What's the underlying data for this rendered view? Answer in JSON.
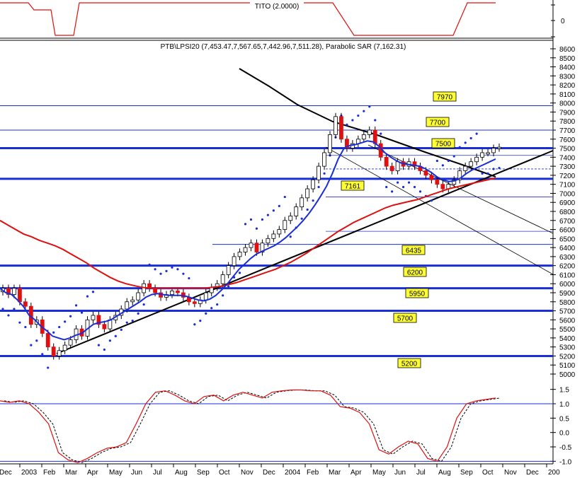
{
  "chart_data": {
    "type": "candlestick",
    "title": "PTB\\LPSI20 (7,453.47,7,567.65,7,442.96,7,511.28), Parabolic SAR (7,162.31)",
    "indicator_top": {
      "label": "TITO (2.0000)",
      "tick_label": "0"
    },
    "y_ticks": [
      8600,
      8500,
      8400,
      8300,
      8200,
      8100,
      8000,
      7900,
      7800,
      7700,
      7600,
      7500,
      7400,
      7300,
      7200,
      7100,
      7000,
      6900,
      6800,
      6700,
      6600,
      6500,
      6400,
      6300,
      6200,
      6100,
      6000,
      5900,
      5800,
      5700,
      5600,
      5500,
      5400,
      5300,
      5200,
      5100,
      5000
    ],
    "ylim": [
      4900,
      8700
    ],
    "osc_ticks": [
      "1.5",
      "1.0",
      "0.5",
      "0.0",
      "-0.5",
      "-1.0"
    ],
    "osc_range": [
      -1.25,
      1.75
    ],
    "x_labels": [
      "Dec",
      "2003",
      "Feb",
      "Mar",
      "Apr",
      "May",
      "Jun",
      "Jul",
      "Aug",
      "Sep",
      "Oct",
      "Nov",
      "Dec",
      "2004",
      "Feb",
      "Mar",
      "Apr",
      "May",
      "Jun",
      "Jul",
      "Aug",
      "Sep",
      "Oct",
      "Nov",
      "Dec",
      "200"
    ],
    "levels": [
      {
        "value": 7970,
        "label": "7970",
        "thick": false
      },
      {
        "value": 7700,
        "label": "7700",
        "thick": false
      },
      {
        "value": 7500,
        "label": "7500",
        "thick": true
      },
      {
        "value": 7161,
        "label": "7161",
        "thick": true
      },
      {
        "value": 6435,
        "label": "6435",
        "thick": false
      },
      {
        "value": 6200,
        "label": "6200",
        "thick": true
      },
      {
        "value": 5950,
        "label": "5950",
        "thick": true
      },
      {
        "value": 5700,
        "label": "5700",
        "thick": true
      },
      {
        "value": 5200,
        "label": "5200",
        "thick": true
      }
    ],
    "extra_lines": [
      6960,
      6580,
      7270,
      7420
    ],
    "price": [
      5950,
      5880,
      5950,
      5800,
      5750,
      5550,
      5600,
      5450,
      5300,
      5200,
      5260,
      5320,
      5380,
      5500,
      5420,
      5600,
      5650,
      5550,
      5500,
      5600,
      5650,
      5720,
      5800,
      5820,
      5900,
      6000,
      5950,
      5900,
      5850,
      5880,
      5920,
      5900,
      5850,
      5800,
      5780,
      5820,
      5900,
      5960,
      6000,
      6100,
      6200,
      6300,
      6350,
      6400,
      6450,
      6350,
      6450,
      6500,
      6550,
      6600,
      6700,
      6750,
      6850,
      6950,
      7050,
      7150,
      7300,
      7450,
      7650,
      7850,
      7600,
      7500,
      7550,
      7600,
      7650,
      7700,
      7550,
      7400,
      7300,
      7250,
      7350,
      7300,
      7350,
      7300,
      7250,
      7200,
      7150,
      7100,
      7050,
      7100,
      7150,
      7250,
      7300,
      7350,
      7400,
      7450,
      7450,
      7500,
      7511
    ],
    "sma_short": [
      5950,
      5900,
      5880,
      5820,
      5750,
      5650,
      5600,
      5530,
      5480,
      5420,
      5400,
      5380,
      5400,
      5430,
      5450,
      5500,
      5550,
      5570,
      5580,
      5600,
      5640,
      5680,
      5720,
      5760,
      5800,
      5850,
      5880,
      5890,
      5880,
      5870,
      5870,
      5870,
      5860,
      5840,
      5820,
      5810,
      5830,
      5870,
      5930,
      6000,
      6080,
      6160,
      6220,
      6280,
      6330,
      6360,
      6390,
      6420,
      6460,
      6510,
      6570,
      6630,
      6700,
      6780,
      6870,
      6970,
      7080,
      7220,
      7380,
      7500,
      7530,
      7540,
      7560,
      7580,
      7570,
      7520,
      7450,
      7400,
      7360,
      7330,
      7320,
      7310,
      7300,
      7270,
      7230,
      7180,
      7150,
      7130,
      7140,
      7170,
      7220,
      7260,
      7290,
      7320,
      7350,
      7380
    ],
    "sma_long": [
      6700,
      6650,
      6600,
      6550,
      6520,
      6480,
      6450,
      6420,
      6380,
      6330,
      6280,
      6230,
      6170,
      6120,
      6070,
      6030,
      6000,
      5980,
      5960,
      5950,
      5950,
      5950,
      5950,
      5950,
      5950,
      5950,
      5950,
      5960,
      5970,
      5990,
      6010,
      6040,
      6070,
      6100,
      6130,
      6160,
      6200,
      6240,
      6290,
      6340,
      6400,
      6460,
      6520,
      6580,
      6630,
      6680,
      6720,
      6760,
      6800,
      6840,
      6870,
      6890,
      6910,
      6930,
      6960,
      6990,
      7020,
      7050,
      7070,
      7090,
      7110,
      7130,
      7150,
      7170
    ],
    "osc": [
      1.1,
      1.05,
      1.1,
      1.0,
      0.7,
      0.3,
      -0.7,
      -0.95,
      -1.05,
      -0.9,
      -0.7,
      -0.55,
      -0.5,
      -0.35,
      0.3,
      1.0,
      1.4,
      1.45,
      1.3,
      1.1,
      1.0,
      1.25,
      1.3,
      1.1,
      1.3,
      1.4,
      1.3,
      1.2,
      1.4,
      1.45,
      1.48,
      1.48,
      1.45,
      1.45,
      1.3,
      0.9,
      0.85,
      0.7,
      0.3,
      -0.6,
      -0.75,
      -0.5,
      -0.3,
      -0.4,
      -0.9,
      -1.0,
      -0.5,
      0.5,
      1.0,
      1.1,
      1.15,
      1.2
    ]
  }
}
